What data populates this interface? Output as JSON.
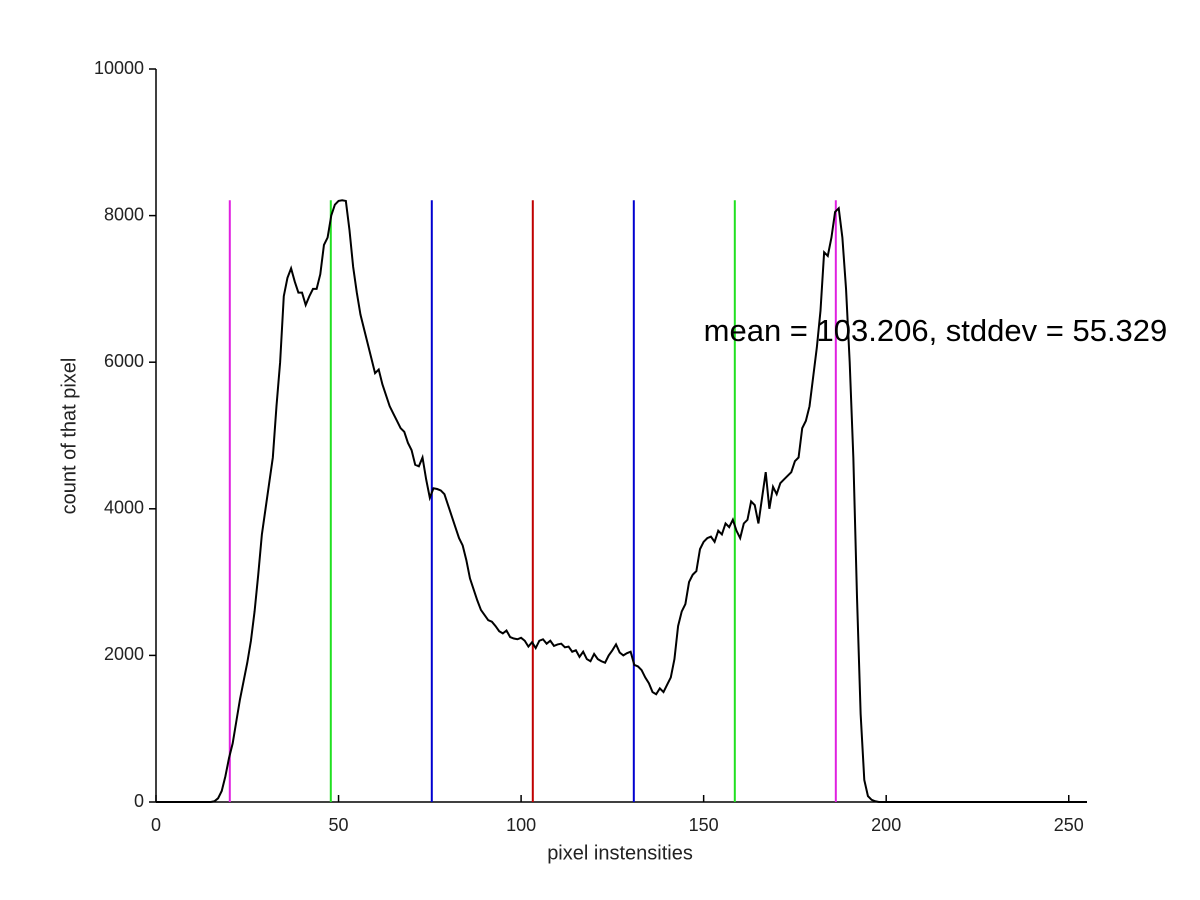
{
  "chart_data": {
    "type": "line",
    "xlabel": "pixel instensities",
    "ylabel": "count of that pixel",
    "annotation": {
      "text": "mean = 103.206, stddev = 55.329",
      "x": 150,
      "y": 6400
    },
    "xlim": [
      0,
      255
    ],
    "ylim": [
      0,
      10000
    ],
    "xticks": [
      0,
      50,
      100,
      150,
      200,
      250
    ],
    "yticks": [
      0,
      2000,
      4000,
      6000,
      8000,
      10000
    ],
    "grid": false,
    "color": "#000000",
    "x": [
      0,
      1,
      2,
      3,
      4,
      5,
      6,
      7,
      8,
      9,
      10,
      11,
      12,
      13,
      14,
      15,
      16,
      17,
      18,
      19,
      20,
      21,
      22,
      23,
      24,
      25,
      26,
      27,
      28,
      29,
      30,
      31,
      32,
      33,
      34,
      35,
      36,
      37,
      38,
      39,
      40,
      41,
      42,
      43,
      44,
      45,
      46,
      47,
      48,
      49,
      50,
      51,
      52,
      53,
      54,
      55,
      56,
      57,
      58,
      59,
      60,
      61,
      62,
      63,
      64,
      65,
      66,
      67,
      68,
      69,
      70,
      71,
      72,
      73,
      74,
      75,
      76,
      77,
      78,
      79,
      80,
      81,
      82,
      83,
      84,
      85,
      86,
      87,
      88,
      89,
      90,
      91,
      92,
      93,
      94,
      95,
      96,
      97,
      98,
      99,
      100,
      101,
      102,
      103,
      104,
      105,
      106,
      107,
      108,
      109,
      110,
      111,
      112,
      113,
      114,
      115,
      116,
      117,
      118,
      119,
      120,
      121,
      122,
      123,
      124,
      125,
      126,
      127,
      128,
      129,
      130,
      131,
      132,
      133,
      134,
      135,
      136,
      137,
      138,
      139,
      140,
      141,
      142,
      143,
      144,
      145,
      146,
      147,
      148,
      149,
      150,
      151,
      152,
      153,
      154,
      155,
      156,
      157,
      158,
      159,
      160,
      161,
      162,
      163,
      164,
      165,
      166,
      167,
      168,
      169,
      170,
      171,
      172,
      173,
      174,
      175,
      176,
      177,
      178,
      179,
      180,
      181,
      182,
      183,
      184,
      185,
      186,
      187,
      188,
      189,
      190,
      191,
      192,
      193,
      194,
      195,
      196,
      197,
      198,
      199,
      200,
      201,
      202,
      203,
      204,
      205,
      206,
      207,
      208,
      209,
      210,
      211,
      212,
      213,
      214,
      215,
      216,
      217,
      218,
      219,
      220,
      221,
      222,
      223,
      224,
      225,
      226,
      227,
      228,
      229,
      230,
      231,
      232,
      233,
      234,
      235,
      236,
      237,
      238,
      239,
      240,
      241,
      242,
      243,
      244,
      245,
      246,
      247,
      248,
      249,
      250,
      251,
      252,
      253,
      254,
      255
    ],
    "values": [
      0,
      0,
      0,
      0,
      0,
      0,
      0,
      0,
      0,
      0,
      0,
      0,
      0,
      0,
      0,
      0,
      10,
      50,
      150,
      350,
      600,
      800,
      1100,
      1400,
      1650,
      1900,
      2200,
      2600,
      3100,
      3650,
      4000,
      4350,
      4700,
      5400,
      6000,
      6900,
      7150,
      7280,
      7100,
      6950,
      6950,
      6780,
      6900,
      7000,
      7000,
      7200,
      7600,
      7700,
      8000,
      8150,
      8200,
      8210,
      8200,
      7800,
      7300,
      6950,
      6650,
      6450,
      6250,
      6050,
      5850,
      5900,
      5700,
      5550,
      5400,
      5300,
      5200,
      5100,
      5050,
      4900,
      4800,
      4600,
      4580,
      4700,
      4400,
      4150,
      4280,
      4270,
      4250,
      4200,
      4050,
      3900,
      3750,
      3600,
      3500,
      3300,
      3050,
      2900,
      2750,
      2620,
      2550,
      2480,
      2460,
      2400,
      2330,
      2300,
      2340,
      2250,
      2230,
      2220,
      2240,
      2200,
      2120,
      2180,
      2100,
      2200,
      2220,
      2160,
      2200,
      2130,
      2150,
      2160,
      2110,
      2120,
      2050,
      2070,
      1980,
      2050,
      1950,
      1920,
      2020,
      1950,
      1920,
      1900,
      2000,
      2070,
      2150,
      2040,
      2000,
      2030,
      2050,
      1870,
      1850,
      1800,
      1700,
      1620,
      1500,
      1470,
      1550,
      1500,
      1600,
      1700,
      1950,
      2400,
      2600,
      2700,
      3000,
      3100,
      3150,
      3450,
      3550,
      3600,
      3620,
      3550,
      3700,
      3650,
      3800,
      3750,
      3850,
      3700,
      3600,
      3800,
      3850,
      4100,
      4050,
      3800,
      4150,
      4500,
      4000,
      4300,
      4200,
      4350,
      4400,
      4450,
      4500,
      4650,
      4700,
      5100,
      5200,
      5400,
      5800,
      6200,
      6700,
      7500,
      7450,
      7700,
      8050,
      8100,
      7700,
      7000,
      6000,
      4700,
      2800,
      1200,
      300,
      80,
      30,
      10,
      0,
      0,
      0,
      0,
      0,
      0,
      0,
      0,
      0,
      0,
      0,
      0,
      0,
      0,
      0,
      0,
      0,
      0,
      0,
      0,
      0,
      0,
      0,
      0,
      0,
      0,
      0,
      0,
      0,
      0,
      0,
      0,
      0,
      0,
      0,
      0,
      0,
      0,
      0,
      0,
      0,
      0,
      0,
      0,
      0,
      0,
      0,
      0,
      0,
      0,
      0,
      0,
      0,
      0,
      0,
      0,
      0,
      0
    ],
    "vlines": [
      {
        "value": 20.212,
        "color": "#e020e0"
      },
      {
        "value": 47.877,
        "color": "#20e020"
      },
      {
        "value": 75.541,
        "color": "#0000d0"
      },
      {
        "value": 103.206,
        "color": "#c00000"
      },
      {
        "value": 130.871,
        "color": "#0000d0"
      },
      {
        "value": 158.535,
        "color": "#20e020"
      },
      {
        "value": 186.2,
        "color": "#e020e0"
      }
    ]
  }
}
